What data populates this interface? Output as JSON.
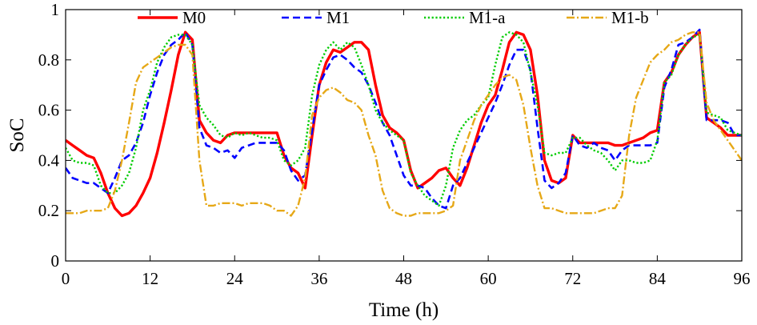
{
  "chart_data": {
    "type": "line",
    "title": "",
    "xlabel": "Time (h)",
    "ylabel": "SoC",
    "xlim": [
      0,
      96
    ],
    "ylim": [
      0,
      1
    ],
    "xticks": [
      "0",
      "12",
      "24",
      "36",
      "48",
      "60",
      "72",
      "84",
      "96"
    ],
    "yticks": [
      "0",
      "0.2",
      "0.4",
      "0.6",
      "0.8",
      "1"
    ],
    "grid": false,
    "legend_position": "top",
    "series": [
      {
        "name": "M0",
        "color": "#ff0000",
        "style": "solid",
        "x": [
          0,
          1,
          2,
          3,
          4,
          5,
          6,
          7,
          8,
          9,
          10,
          11,
          12,
          13,
          14,
          15,
          16,
          17,
          18,
          19,
          20,
          21,
          22,
          23,
          24,
          25,
          26,
          27,
          28,
          29,
          30,
          31,
          32,
          33,
          34,
          35,
          36,
          37,
          38,
          39,
          40,
          41,
          42,
          43,
          44,
          45,
          46,
          47,
          48,
          49,
          50,
          51,
          52,
          53,
          54,
          55,
          56,
          57,
          58,
          59,
          60,
          61,
          62,
          63,
          64,
          65,
          66,
          67,
          68,
          69,
          70,
          71,
          72,
          73,
          74,
          75,
          76,
          77,
          78,
          79,
          80,
          81,
          82,
          83,
          84,
          85,
          86,
          87,
          88,
          89,
          90,
          91,
          92,
          93,
          94,
          95,
          96
        ],
        "y": [
          0.48,
          0.46,
          0.44,
          0.42,
          0.41,
          0.35,
          0.27,
          0.21,
          0.18,
          0.19,
          0.22,
          0.27,
          0.33,
          0.43,
          0.55,
          0.68,
          0.82,
          0.91,
          0.88,
          0.56,
          0.51,
          0.48,
          0.47,
          0.5,
          0.51,
          0.51,
          0.51,
          0.51,
          0.51,
          0.51,
          0.51,
          0.42,
          0.37,
          0.35,
          0.29,
          0.5,
          0.7,
          0.79,
          0.84,
          0.83,
          0.85,
          0.87,
          0.87,
          0.84,
          0.7,
          0.58,
          0.53,
          0.51,
          0.48,
          0.36,
          0.29,
          0.31,
          0.33,
          0.36,
          0.37,
          0.33,
          0.3,
          0.37,
          0.46,
          0.55,
          0.62,
          0.66,
          0.76,
          0.87,
          0.91,
          0.9,
          0.84,
          0.66,
          0.4,
          0.32,
          0.31,
          0.33,
          0.5,
          0.47,
          0.47,
          0.47,
          0.47,
          0.47,
          0.46,
          0.46,
          0.47,
          0.48,
          0.49,
          0.51,
          0.52,
          0.71,
          0.75,
          0.82,
          0.86,
          0.89,
          0.91,
          0.57,
          0.55,
          0.53,
          0.5,
          0.5,
          0.5
        ]
      },
      {
        "name": "M1",
        "color": "#0000ff",
        "style": "dashed",
        "x": [
          0,
          1,
          2,
          3,
          4,
          5,
          6,
          7,
          8,
          9,
          10,
          11,
          12,
          13,
          14,
          15,
          16,
          17,
          18,
          19,
          20,
          21,
          22,
          23,
          24,
          25,
          26,
          27,
          28,
          29,
          30,
          31,
          32,
          33,
          34,
          35,
          36,
          37,
          38,
          39,
          40,
          41,
          42,
          43,
          44,
          45,
          46,
          47,
          48,
          49,
          50,
          51,
          52,
          53,
          54,
          55,
          56,
          57,
          58,
          59,
          60,
          61,
          62,
          63,
          64,
          65,
          66,
          67,
          68,
          69,
          70,
          71,
          72,
          73,
          74,
          75,
          76,
          77,
          78,
          79,
          80,
          81,
          82,
          83,
          84,
          85,
          86,
          87,
          88,
          89,
          90,
          91,
          92,
          93,
          94,
          95,
          96
        ],
        "y": [
          0.37,
          0.33,
          0.32,
          0.31,
          0.31,
          0.29,
          0.27,
          0.33,
          0.4,
          0.42,
          0.47,
          0.55,
          0.66,
          0.75,
          0.82,
          0.86,
          0.88,
          0.91,
          0.86,
          0.53,
          0.46,
          0.45,
          0.43,
          0.44,
          0.41,
          0.45,
          0.46,
          0.47,
          0.47,
          0.47,
          0.47,
          0.44,
          0.36,
          0.32,
          0.34,
          0.52,
          0.7,
          0.76,
          0.81,
          0.82,
          0.8,
          0.77,
          0.75,
          0.7,
          0.63,
          0.55,
          0.5,
          0.42,
          0.34,
          0.3,
          0.3,
          0.29,
          0.25,
          0.22,
          0.21,
          0.3,
          0.33,
          0.39,
          0.45,
          0.51,
          0.57,
          0.63,
          0.7,
          0.78,
          0.84,
          0.84,
          0.76,
          0.53,
          0.32,
          0.29,
          0.31,
          0.35,
          0.5,
          0.46,
          0.45,
          0.47,
          0.45,
          0.44,
          0.4,
          0.44,
          0.46,
          0.46,
          0.46,
          0.46,
          0.47,
          0.69,
          0.76,
          0.86,
          0.87,
          0.89,
          0.92,
          0.56,
          0.56,
          0.56,
          0.55,
          0.5,
          0.5
        ]
      },
      {
        "name": "M1-a",
        "color": "#00cc00",
        "style": "dotted",
        "x": [
          0,
          1,
          2,
          3,
          4,
          5,
          6,
          7,
          8,
          9,
          10,
          11,
          12,
          13,
          14,
          15,
          16,
          17,
          18,
          19,
          20,
          21,
          22,
          23,
          24,
          25,
          26,
          27,
          28,
          29,
          30,
          31,
          32,
          33,
          34,
          35,
          36,
          37,
          38,
          39,
          40,
          41,
          42,
          43,
          44,
          45,
          46,
          47,
          48,
          49,
          50,
          51,
          52,
          53,
          54,
          55,
          56,
          57,
          58,
          59,
          60,
          61,
          62,
          63,
          64,
          65,
          66,
          67,
          68,
          69,
          70,
          71,
          72,
          73,
          74,
          75,
          76,
          77,
          78,
          79,
          80,
          81,
          82,
          83,
          84,
          85,
          86,
          87,
          88,
          89,
          90,
          91,
          92,
          93,
          94,
          95,
          96
        ],
        "y": [
          0.45,
          0.4,
          0.39,
          0.39,
          0.38,
          0.3,
          0.27,
          0.27,
          0.3,
          0.35,
          0.45,
          0.6,
          0.68,
          0.79,
          0.85,
          0.89,
          0.9,
          0.9,
          0.86,
          0.62,
          0.57,
          0.54,
          0.5,
          0.49,
          0.51,
          0.5,
          0.51,
          0.5,
          0.49,
          0.49,
          0.48,
          0.4,
          0.38,
          0.4,
          0.45,
          0.66,
          0.78,
          0.84,
          0.87,
          0.84,
          0.87,
          0.85,
          0.78,
          0.7,
          0.6,
          0.55,
          0.52,
          0.5,
          0.48,
          0.35,
          0.3,
          0.26,
          0.24,
          0.22,
          0.3,
          0.45,
          0.52,
          0.56,
          0.58,
          0.62,
          0.65,
          0.78,
          0.89,
          0.91,
          0.9,
          0.87,
          0.75,
          0.62,
          0.43,
          0.42,
          0.43,
          0.43,
          0.49,
          0.49,
          0.46,
          0.44,
          0.43,
          0.4,
          0.36,
          0.4,
          0.4,
          0.39,
          0.39,
          0.4,
          0.48,
          0.71,
          0.74,
          0.82,
          0.86,
          0.89,
          0.9,
          0.59,
          0.58,
          0.57,
          0.52,
          0.51,
          0.5
        ]
      },
      {
        "name": "M1-b",
        "color": "#e6a817",
        "style": "dashdot",
        "x": [
          0,
          1,
          2,
          3,
          4,
          5,
          6,
          7,
          8,
          9,
          10,
          11,
          12,
          13,
          14,
          15,
          16,
          17,
          18,
          19,
          20,
          21,
          22,
          23,
          24,
          25,
          26,
          27,
          28,
          29,
          30,
          31,
          32,
          33,
          34,
          35,
          36,
          37,
          38,
          39,
          40,
          41,
          42,
          43,
          44,
          45,
          46,
          47,
          48,
          49,
          50,
          51,
          52,
          53,
          54,
          55,
          56,
          57,
          58,
          59,
          60,
          61,
          62,
          63,
          64,
          65,
          66,
          67,
          68,
          69,
          70,
          71,
          72,
          73,
          74,
          75,
          76,
          77,
          78,
          79,
          80,
          81,
          82,
          83,
          84,
          85,
          86,
          87,
          88,
          89,
          90,
          91,
          92,
          93,
          94,
          95,
          96
        ],
        "y": [
          0.19,
          0.19,
          0.19,
          0.2,
          0.2,
          0.2,
          0.21,
          0.28,
          0.4,
          0.55,
          0.71,
          0.77,
          0.79,
          0.81,
          0.83,
          0.85,
          0.86,
          0.86,
          0.82,
          0.4,
          0.22,
          0.22,
          0.23,
          0.23,
          0.23,
          0.22,
          0.23,
          0.23,
          0.23,
          0.22,
          0.2,
          0.2,
          0.18,
          0.22,
          0.33,
          0.58,
          0.65,
          0.68,
          0.69,
          0.67,
          0.64,
          0.63,
          0.6,
          0.5,
          0.42,
          0.28,
          0.21,
          0.19,
          0.18,
          0.18,
          0.19,
          0.19,
          0.19,
          0.19,
          0.2,
          0.22,
          0.4,
          0.48,
          0.56,
          0.62,
          0.66,
          0.7,
          0.73,
          0.74,
          0.72,
          0.62,
          0.45,
          0.3,
          0.21,
          0.21,
          0.2,
          0.19,
          0.19,
          0.19,
          0.19,
          0.19,
          0.2,
          0.21,
          0.21,
          0.26,
          0.5,
          0.65,
          0.72,
          0.79,
          0.82,
          0.84,
          0.87,
          0.88,
          0.9,
          0.91,
          0.91,
          0.63,
          0.56,
          0.52,
          0.48,
          0.44,
          0.4
        ]
      }
    ]
  }
}
